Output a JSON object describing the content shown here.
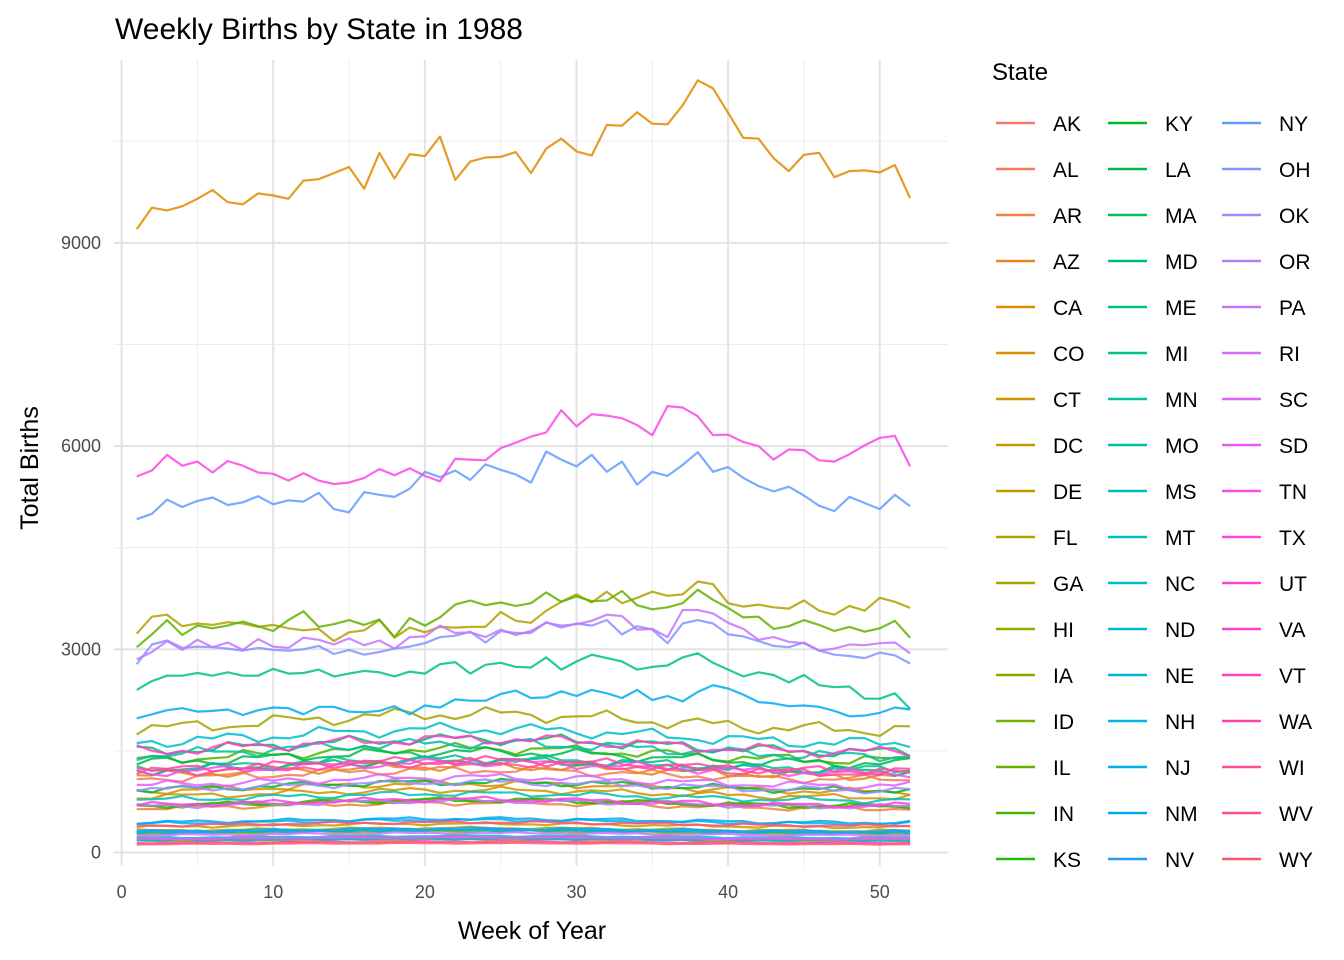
{
  "chart_data": {
    "type": "line",
    "title": "Weekly Births by State in 1988",
    "xlabel": "Week of Year",
    "ylabel": "Total Births",
    "xlim": [
      -0.5,
      54.5
    ],
    "ylim": [
      -200,
      11700
    ],
    "x_ticks": [
      0,
      10,
      20,
      30,
      40,
      50
    ],
    "y_ticks": [
      0,
      3000,
      6000,
      9000
    ],
    "grid": true,
    "legend": {
      "title": "State",
      "placement": "right",
      "columns": 3
    },
    "x": [
      1,
      2,
      3,
      4,
      5,
      6,
      7,
      8,
      9,
      10,
      11,
      12,
      13,
      14,
      15,
      16,
      17,
      18,
      19,
      20,
      21,
      22,
      23,
      24,
      25,
      26,
      27,
      28,
      29,
      30,
      31,
      32,
      33,
      34,
      35,
      36,
      37,
      38,
      39,
      40,
      41,
      42,
      43,
      44,
      45,
      46,
      47,
      48,
      49,
      50,
      51,
      52
    ],
    "series": [
      {
        "name": "AK",
        "color": "#F8766D",
        "base": 205,
        "values": null
      },
      {
        "name": "AL",
        "color": "#F37B59",
        "base": 1150,
        "values": null
      },
      {
        "name": "AR",
        "color": "#ED8141",
        "base": 690,
        "values": null
      },
      {
        "name": "AZ",
        "color": "#E7861B",
        "base": 1200,
        "values": null
      },
      {
        "name": "CA",
        "color": "#E08B00",
        "base": 0,
        "values": [
          9200,
          9520,
          9480,
          9540,
          9650,
          9780,
          9600,
          9570,
          9730,
          9700,
          9650,
          9920,
          9940,
          10030,
          10120,
          9800,
          10330,
          9950,
          10310,
          10280,
          10570,
          9930,
          10200,
          10260,
          10270,
          10340,
          10030,
          10390,
          10540,
          10350,
          10290,
          10740,
          10730,
          10930,
          10760,
          10750,
          11030,
          11400,
          11280,
          10920,
          10550,
          10540,
          10250,
          10060,
          10300,
          10330,
          9970,
          10060,
          10070,
          10040,
          10150,
          9660
        ]
      },
      {
        "name": "CO",
        "color": "#D89000",
        "base": 960,
        "values": null
      },
      {
        "name": "CT",
        "color": "#CF9400",
        "base": 870,
        "values": null
      },
      {
        "name": "DC",
        "color": "#C59900",
        "base": 400,
        "values": null
      },
      {
        "name": "DE",
        "color": "#BB9D00",
        "base": 180,
        "values": null
      },
      {
        "name": "FL",
        "color": "#AFA100",
        "base": 0,
        "values": [
          3230,
          3480,
          3510,
          3340,
          3380,
          3360,
          3400,
          3380,
          3330,
          3360,
          3310,
          3280,
          3300,
          3120,
          3250,
          3280,
          3430,
          3170,
          3320,
          3250,
          3330,
          3320,
          3330,
          3330,
          3550,
          3420,
          3390,
          3570,
          3700,
          3810,
          3690,
          3850,
          3680,
          3760,
          3850,
          3790,
          3810,
          4000,
          3960,
          3680,
          3630,
          3660,
          3620,
          3600,
          3720,
          3570,
          3510,
          3640,
          3570,
          3760,
          3700,
          3610
        ]
      },
      {
        "name": "GA",
        "color": "#A3A500",
        "base": 1930,
        "values": null
      },
      {
        "name": "HI",
        "color": "#96A900",
        "base": 340,
        "values": null
      },
      {
        "name": "IA",
        "color": "#87AC00",
        "base": 730,
        "values": null
      },
      {
        "name": "ID",
        "color": "#77AF00",
        "base": 300,
        "values": null
      },
      {
        "name": "IL",
        "color": "#64B200",
        "base": 0,
        "values": [
          3030,
          3220,
          3430,
          3210,
          3350,
          3310,
          3350,
          3410,
          3340,
          3270,
          3430,
          3560,
          3330,
          3370,
          3430,
          3360,
          3440,
          3180,
          3460,
          3350,
          3470,
          3660,
          3720,
          3650,
          3690,
          3640,
          3680,
          3840,
          3700,
          3780,
          3710,
          3720,
          3860,
          3650,
          3590,
          3620,
          3680,
          3880,
          3730,
          3610,
          3470,
          3480,
          3300,
          3340,
          3430,
          3360,
          3270,
          3330,
          3260,
          3310,
          3420,
          3170
        ]
      },
      {
        "name": "IN",
        "color": "#4BB400",
        "base": 1450,
        "values": null
      },
      {
        "name": "KS",
        "color": "#24B700",
        "base": 730,
        "values": null
      },
      {
        "name": "KY",
        "color": "#00B82A",
        "base": 980,
        "values": null
      },
      {
        "name": "LA",
        "color": "#00BA48",
        "base": 1400,
        "values": null
      },
      {
        "name": "MA",
        "color": "#00BC5E",
        "base": 1580,
        "values": null
      },
      {
        "name": "MD",
        "color": "#00BE70",
        "base": 1280,
        "values": null
      },
      {
        "name": "ME",
        "color": "#00BF80",
        "base": 320,
        "values": null
      },
      {
        "name": "MI",
        "color": "#00C08E",
        "base": 0,
        "values": [
          2400,
          2530,
          2610,
          2610,
          2650,
          2610,
          2660,
          2610,
          2610,
          2710,
          2640,
          2650,
          2700,
          2600,
          2640,
          2680,
          2660,
          2600,
          2670,
          2640,
          2780,
          2810,
          2640,
          2770,
          2800,
          2740,
          2730,
          2880,
          2700,
          2820,
          2920,
          2870,
          2820,
          2700,
          2740,
          2760,
          2880,
          2940,
          2800,
          2700,
          2600,
          2660,
          2620,
          2510,
          2620,
          2470,
          2440,
          2450,
          2270,
          2270,
          2350,
          2120
        ]
      },
      {
        "name": "MN",
        "color": "#00C19C",
        "base": 1300,
        "values": null
      },
      {
        "name": "MO",
        "color": "#00C0A9",
        "base": 1520,
        "values": null
      },
      {
        "name": "MS",
        "color": "#00C0B5",
        "base": 820,
        "values": null
      },
      {
        "name": "MT",
        "color": "#00BFC0",
        "base": 230,
        "values": null
      },
      {
        "name": "NC",
        "color": "#00BDCB",
        "base": 1720,
        "values": null
      },
      {
        "name": "ND",
        "color": "#00BAD5",
        "base": 190,
        "values": null
      },
      {
        "name": "NE",
        "color": "#00B6DE",
        "base": 450,
        "values": null
      },
      {
        "name": "NH",
        "color": "#00B2E7",
        "base": 310,
        "values": null
      },
      {
        "name": "NJ",
        "color": "#00ADEF",
        "base": 0,
        "values": [
          1980,
          2040,
          2100,
          2130,
          2080,
          2090,
          2110,
          2030,
          2100,
          2140,
          2130,
          2040,
          2150,
          2150,
          2080,
          2070,
          2090,
          2160,
          2040,
          2170,
          2140,
          2260,
          2240,
          2240,
          2340,
          2390,
          2280,
          2290,
          2380,
          2310,
          2400,
          2350,
          2280,
          2400,
          2250,
          2310,
          2230,
          2370,
          2470,
          2420,
          2330,
          2220,
          2200,
          2160,
          2170,
          2150,
          2090,
          2010,
          2020,
          2060,
          2140,
          2110
        ]
      },
      {
        "name": "NM",
        "color": "#00A7F5",
        "base": 470,
        "values": null
      },
      {
        "name": "NV",
        "color": "#21A0FB",
        "base": 330,
        "values": null
      },
      {
        "name": "NY",
        "color": "#619CFF",
        "base": 0,
        "values": [
          4920,
          5000,
          5210,
          5100,
          5190,
          5240,
          5130,
          5170,
          5260,
          5140,
          5200,
          5180,
          5310,
          5070,
          5020,
          5320,
          5280,
          5250,
          5370,
          5620,
          5540,
          5640,
          5500,
          5730,
          5650,
          5580,
          5460,
          5920,
          5800,
          5700,
          5870,
          5620,
          5770,
          5430,
          5620,
          5560,
          5720,
          5910,
          5620,
          5690,
          5530,
          5410,
          5330,
          5400,
          5270,
          5120,
          5040,
          5250,
          5160,
          5070,
          5280,
          5110
        ]
      },
      {
        "name": "OH",
        "color": "#8294FF",
        "base": 0,
        "values": [
          2780,
          3070,
          3130,
          3020,
          3040,
          3030,
          3010,
          2980,
          3020,
          2990,
          2980,
          3000,
          3050,
          2930,
          2990,
          2920,
          2960,
          3010,
          3040,
          3090,
          3180,
          3200,
          3260,
          3100,
          3270,
          3240,
          3240,
          3400,
          3320,
          3380,
          3350,
          3430,
          3220,
          3340,
          3290,
          3090,
          3380,
          3430,
          3380,
          3220,
          3190,
          3120,
          3050,
          3030,
          3100,
          2980,
          2920,
          2900,
          2870,
          2950,
          2910,
          2790
        ]
      },
      {
        "name": "OK",
        "color": "#9D8AFF",
        "base": 980,
        "values": null
      },
      {
        "name": "OR",
        "color": "#B27FFF",
        "base": 720,
        "values": null
      },
      {
        "name": "PA",
        "color": "#C475FF",
        "base": 0,
        "values": [
          2850,
          2960,
          3120,
          2990,
          3140,
          3030,
          3100,
          2990,
          3150,
          3040,
          3020,
          3170,
          3140,
          3070,
          3160,
          3060,
          3130,
          3010,
          3180,
          3190,
          3350,
          3240,
          3250,
          3180,
          3290,
          3210,
          3270,
          3390,
          3350,
          3370,
          3420,
          3510,
          3490,
          3290,
          3300,
          3180,
          3580,
          3580,
          3530,
          3390,
          3300,
          3140,
          3180,
          3110,
          3090,
          2980,
          3010,
          3070,
          3060,
          3090,
          3100,
          2940
        ]
      },
      {
        "name": "RI",
        "color": "#D36CFF",
        "base": 270,
        "values": null
      },
      {
        "name": "SC",
        "color": "#E061FF",
        "base": 1050,
        "values": null
      },
      {
        "name": "SD",
        "color": "#EB58FB",
        "base": 210,
        "values": null
      },
      {
        "name": "TN",
        "color": "#F44FF1",
        "base": 1250,
        "values": null
      },
      {
        "name": "TX",
        "color": "#FA48E6",
        "base": 0,
        "values": [
          5550,
          5640,
          5870,
          5710,
          5770,
          5610,
          5780,
          5710,
          5610,
          5590,
          5490,
          5600,
          5490,
          5440,
          5460,
          5530,
          5660,
          5570,
          5670,
          5560,
          5480,
          5810,
          5800,
          5790,
          5970,
          6050,
          6140,
          6200,
          6530,
          6290,
          6470,
          6450,
          6410,
          6310,
          6160,
          6590,
          6570,
          6440,
          6160,
          6170,
          6060,
          6000,
          5800,
          5950,
          5940,
          5790,
          5770,
          5880,
          6010,
          6120,
          6150,
          5700
        ]
      },
      {
        "name": "UT",
        "color": "#FF42D9",
        "base": 740,
        "values": null
      },
      {
        "name": "VA",
        "color": "#FF40CB",
        "base": 1580,
        "values": null
      },
      {
        "name": "VT",
        "color": "#FF41BB",
        "base": 150,
        "values": null
      },
      {
        "name": "WA",
        "color": "#FF45AA",
        "base": 1280,
        "values": null
      },
      {
        "name": "WI",
        "color": "#FF4B98",
        "base": 1250,
        "values": null
      },
      {
        "name": "WV",
        "color": "#FE5383",
        "base": 420,
        "values": null
      },
      {
        "name": "WY",
        "color": "#FB5B6C",
        "base": 130,
        "values": null
      }
    ]
  }
}
